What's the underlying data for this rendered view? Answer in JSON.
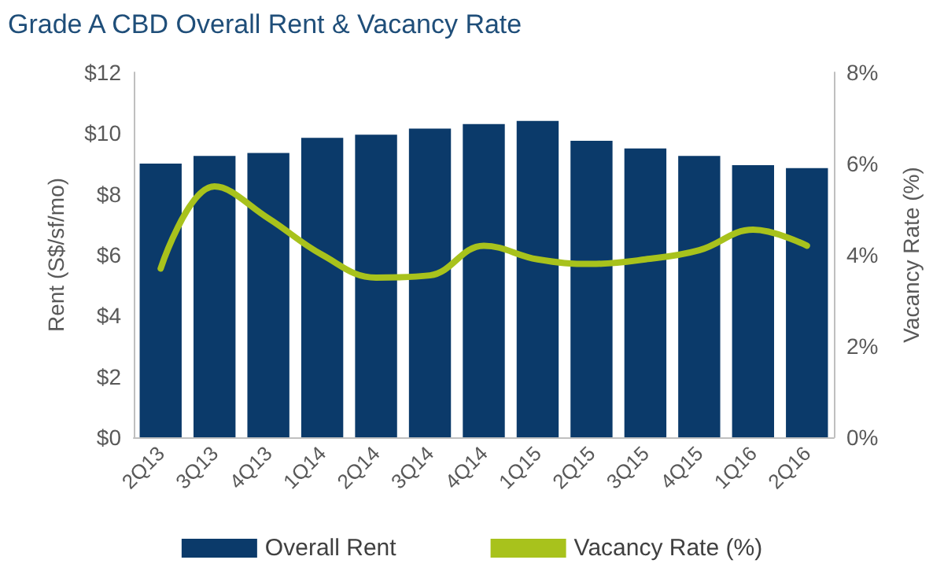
{
  "chart_data": {
    "type": "bar",
    "title": "Grade A CBD Overall Rent & Vacancy Rate",
    "ylabel": "Rent (S$/sf/mo)",
    "y2label": "Vacancy Rate (%)",
    "categories": [
      "2Q13",
      "3Q13",
      "4Q13",
      "1Q14",
      "2Q14",
      "3Q14",
      "4Q14",
      "1Q15",
      "2Q15",
      "3Q15",
      "4Q15",
      "1Q16",
      "2Q16"
    ],
    "series": [
      {
        "name": "Overall Rent",
        "color": "#0b3a6a",
        "values": [
          9.0,
          9.25,
          9.35,
          9.85,
          9.95,
          10.15,
          10.3,
          10.4,
          9.75,
          9.5,
          9.25,
          8.95,
          8.85
        ]
      },
      {
        "name": "Vacancy Rate (%)",
        "type": "line",
        "axis": "y2",
        "color": "#a8c21c",
        "values": [
          3.7,
          5.5,
          4.8,
          4.0,
          3.5,
          3.55,
          4.2,
          3.9,
          3.8,
          3.9,
          4.1,
          4.55,
          4.2
        ]
      }
    ],
    "ylim": [
      0,
      12
    ],
    "yticks": [
      {
        "value": 0,
        "label": "$0"
      },
      {
        "value": 2,
        "label": "$2"
      },
      {
        "value": 4,
        "label": "$4"
      },
      {
        "value": 6,
        "label": "$6"
      },
      {
        "value": 8,
        "label": "$8"
      },
      {
        "value": 10,
        "label": "$10"
      },
      {
        "value": 12,
        "label": "$12"
      }
    ],
    "y2lim": [
      0,
      8
    ],
    "y2ticks": [
      {
        "value": 0,
        "label": "0%"
      },
      {
        "value": 2,
        "label": "2%"
      },
      {
        "value": 4,
        "label": "4%"
      },
      {
        "value": 6,
        "label": "6%"
      },
      {
        "value": 8,
        "label": "8%"
      }
    ],
    "legend": "bottom",
    "grid": false,
    "marker": "none",
    "line_style": "solid"
  }
}
